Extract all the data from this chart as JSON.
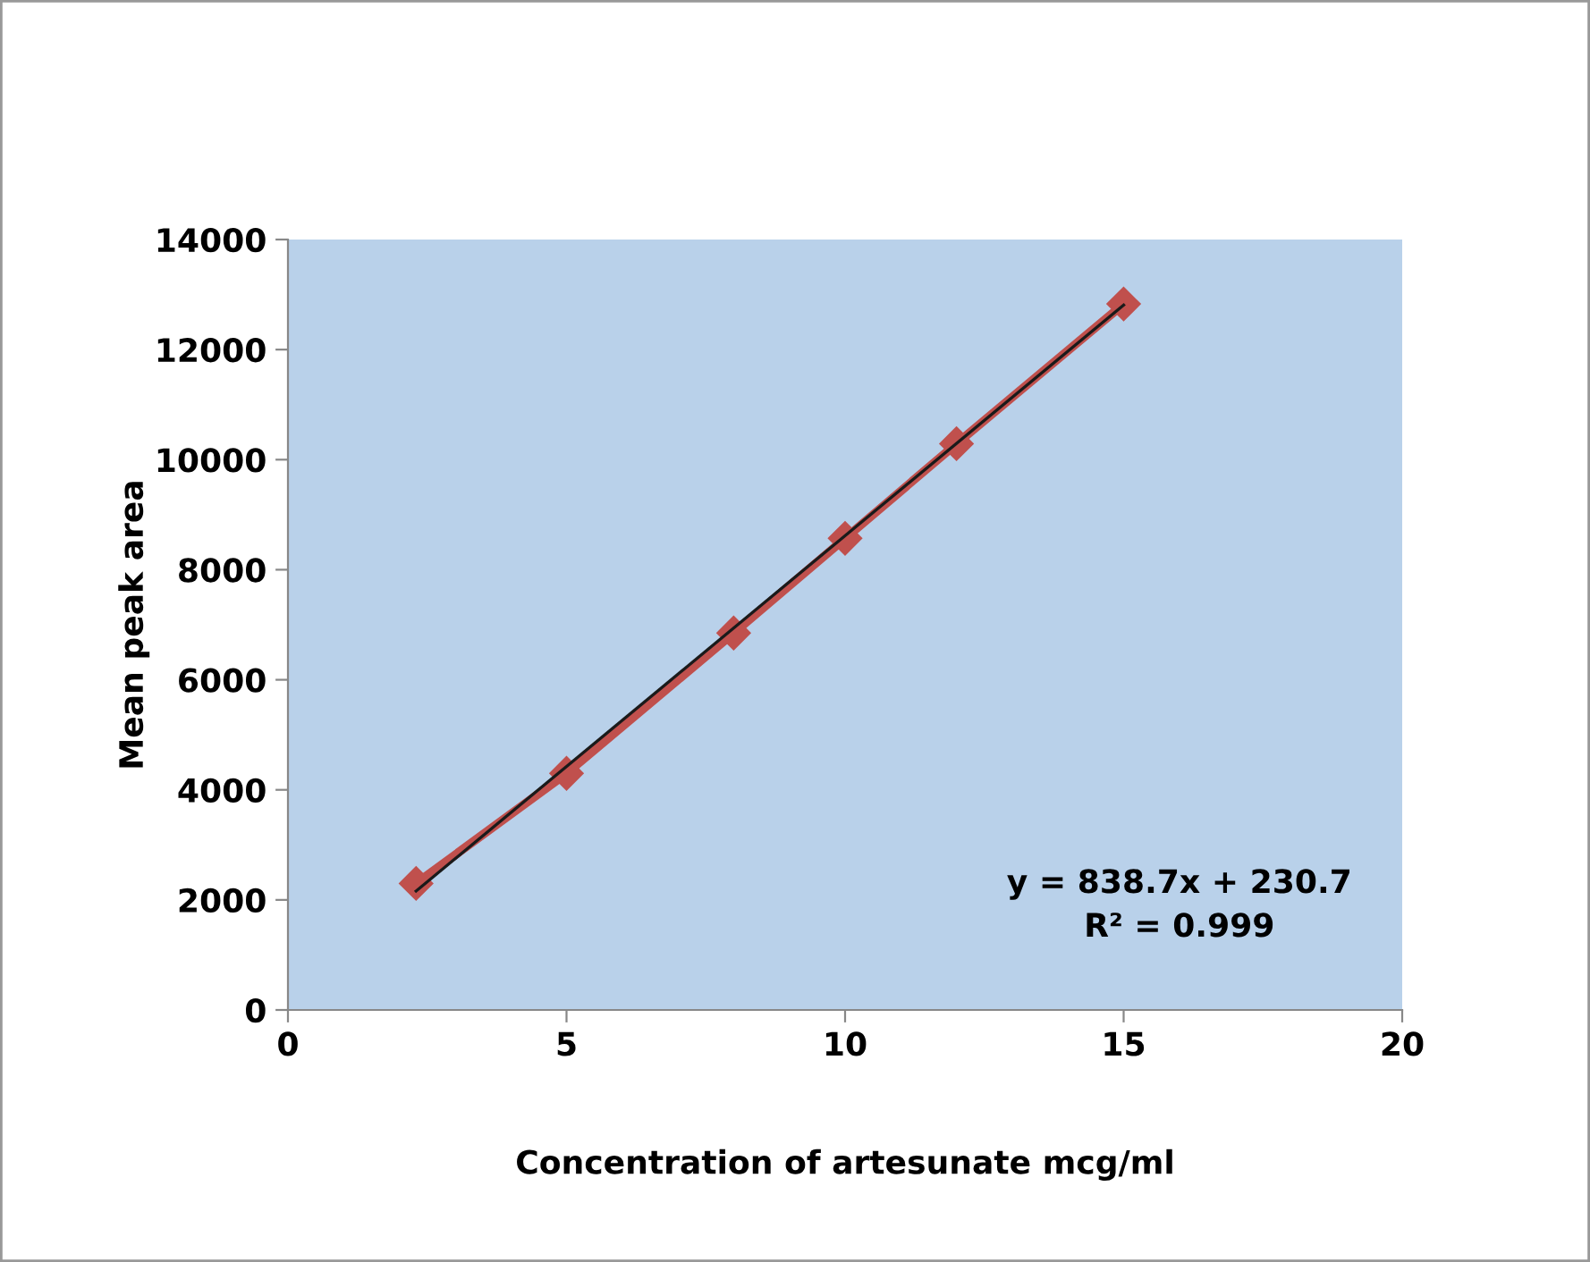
{
  "chart_data": {
    "type": "line",
    "xlabel": "Concentration of artesunate mcg/ml",
    "ylabel": "Mean peak area",
    "xlim": [
      0,
      20
    ],
    "xticks": [
      0,
      5,
      10,
      15,
      20
    ],
    "ylim": [
      0,
      14000
    ],
    "yticks": [
      0,
      2000,
      4000,
      6000,
      8000,
      10000,
      12000,
      14000
    ],
    "grid": false,
    "legend": false,
    "series": [
      {
        "x": [
          2.3,
          5,
          8,
          10,
          12,
          15
        ],
        "values": [
          2300,
          4300,
          6850,
          8570,
          10290,
          12830
        ],
        "color": "#c0504d",
        "marker": "diamond",
        "line_style": "solid"
      },
      {
        "x": [
          2.3,
          15
        ],
        "values": [
          2160,
          12810
        ],
        "color": "#1a1a1a",
        "marker": "none",
        "line_style": "solid"
      }
    ],
    "annotations": [
      "y = 838.7x + 230.7\nR² = 0.999"
    ]
  }
}
